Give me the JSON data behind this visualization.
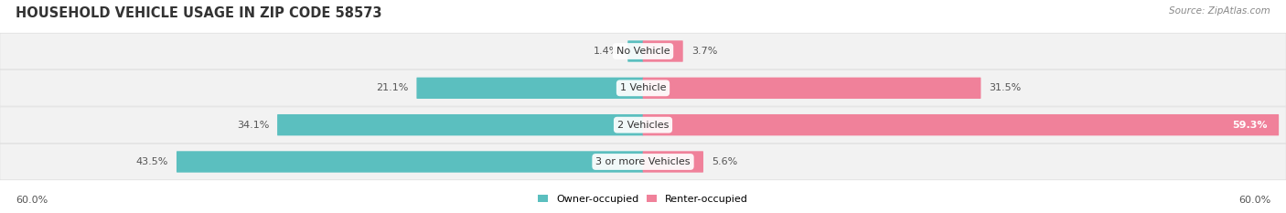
{
  "title": "HOUSEHOLD VEHICLE USAGE IN ZIP CODE 58573",
  "source": "Source: ZipAtlas.com",
  "categories": [
    "No Vehicle",
    "1 Vehicle",
    "2 Vehicles",
    "3 or more Vehicles"
  ],
  "owner_values": [
    1.4,
    21.1,
    34.1,
    43.5
  ],
  "renter_values": [
    3.7,
    31.5,
    59.3,
    5.6
  ],
  "owner_color": "#5BBFBF",
  "renter_color": "#F0819A",
  "axis_max": 60.0,
  "legend_owner": "Owner-occupied",
  "legend_renter": "Renter-occupied",
  "axis_label_left": "60.0%",
  "axis_label_right": "60.0%",
  "title_fontsize": 10.5,
  "source_fontsize": 7.5,
  "label_fontsize": 8,
  "category_fontsize": 8,
  "background_color": "#FFFFFF",
  "row_bg_color": "#F2F2F2",
  "row_border_color": "#DDDDDD"
}
